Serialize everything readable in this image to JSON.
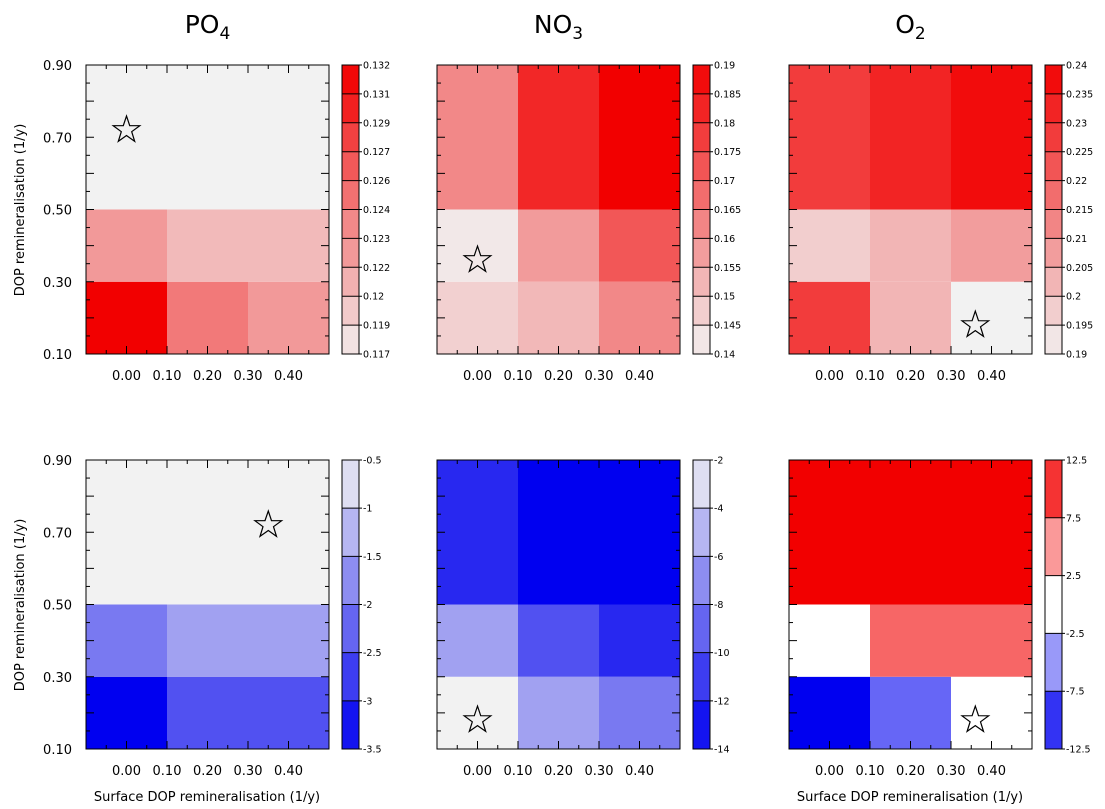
{
  "column_titles": [
    {
      "base": "PO",
      "sub": "4"
    },
    {
      "base": "NO",
      "sub": "3"
    },
    {
      "base": "O",
      "sub": "2"
    }
  ],
  "ylabel": "DOP remineralisation (1/y)",
  "xlabel": "Surface DOP remineralisation (1/y)",
  "chart_data": [
    {
      "type": "heatmap",
      "row": 1,
      "col": 1,
      "x_tick_labels": [
        "0.00",
        "0.10",
        "0.20",
        "0.30",
        "0.40"
      ],
      "y_tick_labels": [
        "0.10",
        "0.30",
        "0.50",
        "0.70",
        "0.90"
      ],
      "x_bin_edges": [
        -0.1,
        0.1,
        0.3,
        0.5
      ],
      "y_bin_edges": [
        0.1,
        0.3,
        0.5,
        0.9
      ],
      "values": [
        [
          0.132,
          0.1245,
          0.1225
        ],
        [
          0.1225,
          0.1205,
          0.1205
        ],
        [
          0.117,
          0.117,
          0.117
        ]
      ],
      "colorbar": {
        "ticks": [
          "0.132",
          "0.131",
          "0.129",
          "0.127",
          "0.126",
          "0.124",
          "0.123",
          "0.122",
          "0.12",
          "0.119",
          "0.117"
        ],
        "min": 0.117,
        "max": 0.132,
        "low_color": "#f2f2f2",
        "high_color": "#f20000"
      },
      "star": {
        "x": 0.0,
        "y": 0.72
      }
    },
    {
      "type": "heatmap",
      "row": 1,
      "col": 2,
      "x_tick_labels": [
        "0.00",
        "0.10",
        "0.20",
        "0.30",
        "0.40"
      ],
      "y_tick_labels": [],
      "x_bin_edges": [
        -0.1,
        0.1,
        0.3,
        0.5
      ],
      "y_bin_edges": [
        0.1,
        0.3,
        0.5,
        0.9
      ],
      "values": [
        [
          0.147,
          0.152,
          0.162
        ],
        [
          0.142,
          0.158,
          0.172
        ],
        [
          0.162,
          0.182,
          0.19
        ]
      ],
      "colorbar": {
        "ticks": [
          "0.19",
          "0.185",
          "0.18",
          "0.175",
          "0.17",
          "0.165",
          "0.16",
          "0.155",
          "0.15",
          "0.145",
          "0.14"
        ],
        "min": 0.14,
        "max": 0.19,
        "low_color": "#f2f2f2",
        "high_color": "#f20000"
      },
      "star": {
        "x": 0.0,
        "y": 0.36
      }
    },
    {
      "type": "heatmap",
      "row": 1,
      "col": 3,
      "x_tick_labels": [
        "0.00",
        "0.10",
        "0.20",
        "0.30",
        "0.40"
      ],
      "y_tick_labels": [],
      "x_bin_edges": [
        -0.1,
        0.1,
        0.3,
        0.5
      ],
      "y_bin_edges": [
        0.1,
        0.3,
        0.5,
        0.9
      ],
      "values": [
        [
          0.2275,
          0.2025,
          0.19
        ],
        [
          0.1975,
          0.2025,
          0.2075
        ],
        [
          0.2275,
          0.2325,
          0.2375
        ]
      ],
      "colorbar": {
        "ticks": [
          "0.24",
          "0.235",
          "0.23",
          "0.225",
          "0.22",
          "0.215",
          "0.21",
          "0.205",
          "0.2",
          "0.195",
          "0.19"
        ],
        "min": 0.19,
        "max": 0.24,
        "low_color": "#f2f2f2",
        "high_color": "#f20000"
      },
      "star": {
        "x": 0.36,
        "y": 0.18
      }
    },
    {
      "type": "heatmap",
      "row": 2,
      "col": 1,
      "x_tick_labels": [
        "0.00",
        "0.10",
        "0.20",
        "0.30",
        "0.40"
      ],
      "y_tick_labels": [
        "0.10",
        "0.30",
        "0.50",
        "0.70",
        "0.90"
      ],
      "x_bin_edges": [
        -0.1,
        0.1,
        0.3,
        0.5
      ],
      "y_bin_edges": [
        0.1,
        0.3,
        0.5,
        0.9
      ],
      "values": [
        [
          -3.5,
          -2.5,
          -2.5
        ],
        [
          -2.0,
          -1.5,
          -1.5
        ],
        [
          -0.5,
          -0.5,
          -0.5
        ]
      ],
      "colorbar": {
        "ticks": [
          "-0.5",
          "-1",
          "-1.5",
          "-2",
          "-2.5",
          "-3",
          "-3.5"
        ],
        "min": -3.5,
        "max": -0.5,
        "low_color": "#0000f0",
        "high_color": "#f2f2f2"
      },
      "star": {
        "x": 0.35,
        "y": 0.72
      }
    },
    {
      "type": "heatmap",
      "row": 2,
      "col": 2,
      "x_tick_labels": [
        "0.00",
        "0.10",
        "0.20",
        "0.30",
        "0.40"
      ],
      "y_tick_labels": [],
      "x_bin_edges": [
        -0.1,
        0.1,
        0.3,
        0.5
      ],
      "y_bin_edges": [
        0.1,
        0.3,
        0.5,
        0.9
      ],
      "values": [
        [
          -2.0,
          -6.0,
          -8.0
        ],
        [
          -6.0,
          -10.0,
          -12.0
        ],
        [
          -12.0,
          -14.0,
          -14.0
        ]
      ],
      "colorbar": {
        "ticks": [
          "-2",
          "-4",
          "-6",
          "-8",
          "-10",
          "-12",
          "-14"
        ],
        "min": -14,
        "max": -2,
        "low_color": "#0000f0",
        "high_color": "#f2f2f2"
      },
      "star": {
        "x": 0.0,
        "y": 0.18
      }
    },
    {
      "type": "heatmap",
      "row": 2,
      "col": 3,
      "x_tick_labels": [
        "0.00",
        "0.10",
        "0.20",
        "0.30",
        "0.40"
      ],
      "y_tick_labels": [],
      "x_bin_edges": [
        -0.1,
        0.1,
        0.3,
        0.5
      ],
      "y_bin_edges": [
        0.1,
        0.3,
        0.5,
        0.9
      ],
      "values": [
        [
          -12.5,
          -7.5,
          0
        ],
        [
          0,
          7.5,
          7.5
        ],
        [
          12.5,
          12.5,
          12.5
        ]
      ],
      "colorbar": {
        "ticks": [
          "12.5",
          "7.5",
          "2.5",
          "-2.5",
          "-7.5",
          "-12.5"
        ],
        "min": -12.5,
        "max": 12.5,
        "diverging": true,
        "low_color": "#0000f0",
        "mid_color": "#ffffff",
        "high_color": "#f20000"
      },
      "star": {
        "x": 0.36,
        "y": 0.18
      }
    }
  ]
}
